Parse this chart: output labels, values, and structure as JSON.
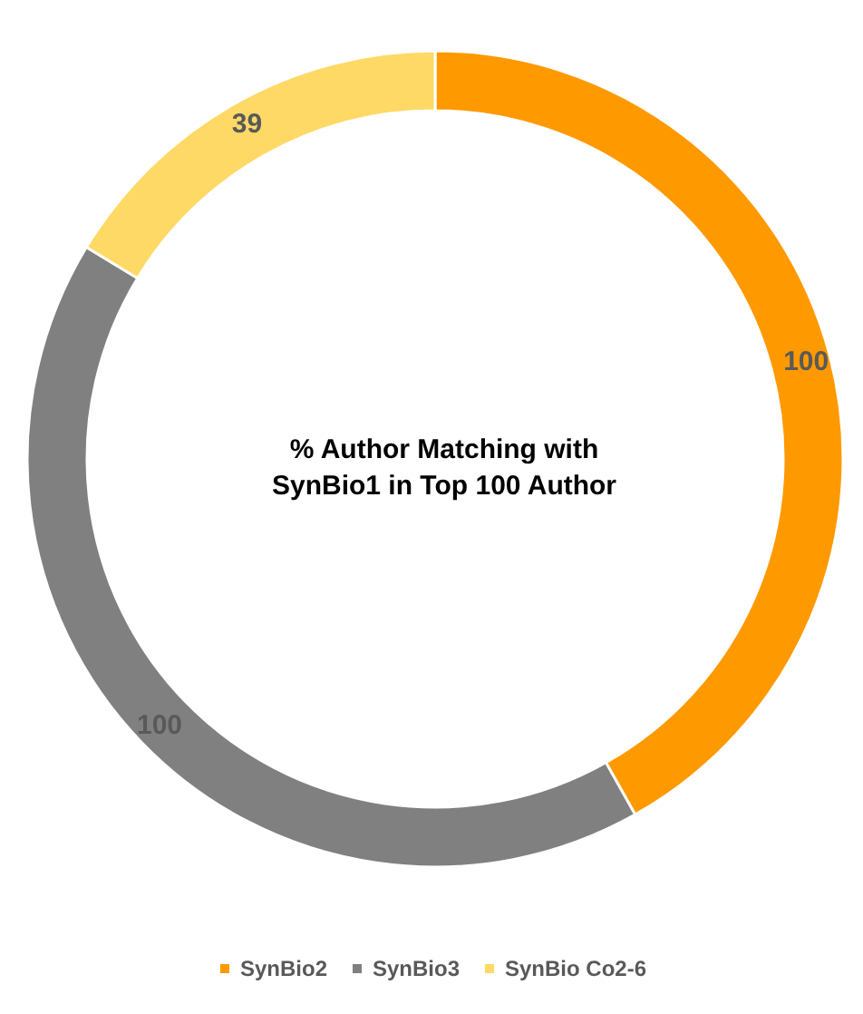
{
  "chart_data": {
    "type": "donut",
    "title": "% Author Matching with\nSynBio1 in Top 100 Author",
    "categories": [
      "SynBio2",
      "SynBio3",
      "SynBio Co2-6"
    ],
    "values": [
      100,
      100,
      39
    ],
    "colors": [
      "#ff9900",
      "#808080",
      "#ffd966"
    ],
    "data_labels": true,
    "legend": "bottom"
  }
}
